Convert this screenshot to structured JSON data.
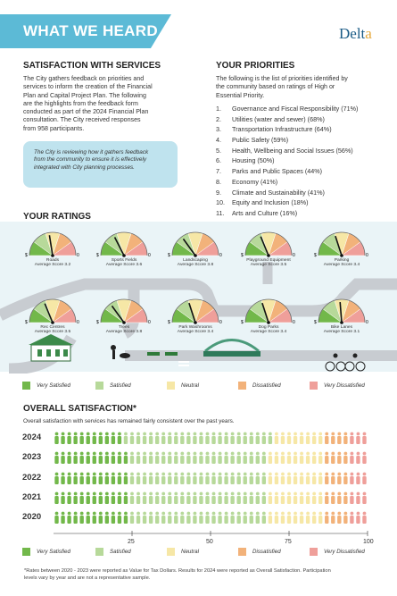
{
  "header": {
    "title": "WHAT WE HEARD",
    "logo_text": "Delta",
    "logo_dot": "a"
  },
  "satisfaction": {
    "heading": "SATISFACTION WITH SERVICES",
    "paragraph_lines": [
      "The City gathers feedback on priorities and",
      "services to inform the creation of the Financial",
      "Plan and Capital Project Plan. The following",
      "are the highlights from the feedback form",
      "conducted as part of the 2024 Financial Plan",
      "consultation. The City received responses",
      "from 958 participants."
    ],
    "note_lines": [
      "The City is reviewing how it gathers feedback",
      "from the community to ensure it is effectively",
      "integrated with City planning processes."
    ]
  },
  "priorities": {
    "heading": "YOUR PRIORITIES",
    "intro_lines": [
      "The following is the list of priorities identified by",
      "the community based on ratings of High or",
      "Essential Priority."
    ],
    "items": [
      {
        "num": "1.",
        "text": "Governance and Fiscal Responsibility (71%)"
      },
      {
        "num": "2.",
        "text": "Utilities (water and sewer) (68%)"
      },
      {
        "num": "3.",
        "text": "Transportation Infrastructure (64%)"
      },
      {
        "num": "4.",
        "text": "Public Safety (59%)"
      },
      {
        "num": "5.",
        "text": "Health, Wellbeing and Social Issues (56%)"
      },
      {
        "num": "6.",
        "text": "Housing (50%)"
      },
      {
        "num": "7.",
        "text": "Parks and Public Spaces (44%)"
      },
      {
        "num": "8.",
        "text": "Economy (41%)"
      },
      {
        "num": "9.",
        "text": "Climate and Sustainability (41%)"
      },
      {
        "num": "10.",
        "text": "Equity and Inclusion (18%)"
      },
      {
        "num": "11.",
        "text": "Arts and Culture (16%)"
      }
    ]
  },
  "ratings": {
    "heading": "YOUR RATINGS",
    "gauges": [
      {
        "name": "Roads",
        "score_text": "Average Score 3.2",
        "score": 3.2
      },
      {
        "name": "Sports Fields",
        "score_text": "Average Score 3.6",
        "score": 3.6
      },
      {
        "name": "Landscaping",
        "score_text": "Average Score 3.8",
        "score": 3.8
      },
      {
        "name": "Playground Equipment",
        "score_text": "Average Score 3.5",
        "score": 3.5
      },
      {
        "name": "Parking",
        "score_text": "Average Score 3.4",
        "score": 3.4
      },
      {
        "name": "Rec Centres",
        "score_text": "Average Score 3.5",
        "score": 3.5
      },
      {
        "name": "Trees",
        "score_text": "Average Score 3.8",
        "score": 3.8
      },
      {
        "name": "Park Washrooms",
        "score_text": "Average Score 3.4",
        "score": 3.4
      },
      {
        "name": "Dog Parks",
        "score_text": "Average Score 3.4",
        "score": 3.4
      },
      {
        "name": "Bike Lanes",
        "score_text": "Average Score 3.1",
        "score": 3.1
      }
    ],
    "gauge_min_label": "$",
    "gauge_max_label": "0"
  },
  "legend": [
    {
      "label": "Very Satisfied",
      "color": "#72b84a"
    },
    {
      "label": "Satisfied",
      "color": "#b7d99a"
    },
    {
      "label": "Neutral",
      "color": "#f6e7a6"
    },
    {
      "label": "Dissatisfied",
      "color": "#f2b27a"
    },
    {
      "label": "Very Dissatisfied",
      "color": "#ef9f9a"
    }
  ],
  "overall": {
    "heading": "OVERALL SATISFACTION*",
    "subtitle": "Overall satisfaction with services has remained fairly consistent over the past years.",
    "axis_ticks": [
      "25",
      "50",
      "75",
      "100"
    ],
    "footnote_lines": [
      "*Rates between 2020 - 2023 were reported as Value for Tax Dollars. Results for 2024 were reported as Overall Satisfaction. Participation",
      "levels vary by year and are not a representative sample."
    ]
  },
  "chart_data": {
    "type": "bar",
    "categories": [
      "2024",
      "2023",
      "2022",
      "2021",
      "2020"
    ],
    "series": [
      {
        "name": "Very Satisfied",
        "values": [
          22,
          24,
          24,
          24,
          24
        ]
      },
      {
        "name": "Satisfied",
        "values": [
          48,
          44,
          44,
          44,
          44
        ]
      },
      {
        "name": "Neutral",
        "values": [
          16,
          18,
          18,
          18,
          18
        ]
      },
      {
        "name": "Dissatisfied",
        "values": [
          8,
          8,
          8,
          8,
          8
        ]
      },
      {
        "name": "Very Dissatisfied",
        "values": [
          6,
          6,
          6,
          6,
          6
        ]
      }
    ],
    "xlim": [
      0,
      100
    ],
    "orientation": "horizontal",
    "stacked": true
  }
}
